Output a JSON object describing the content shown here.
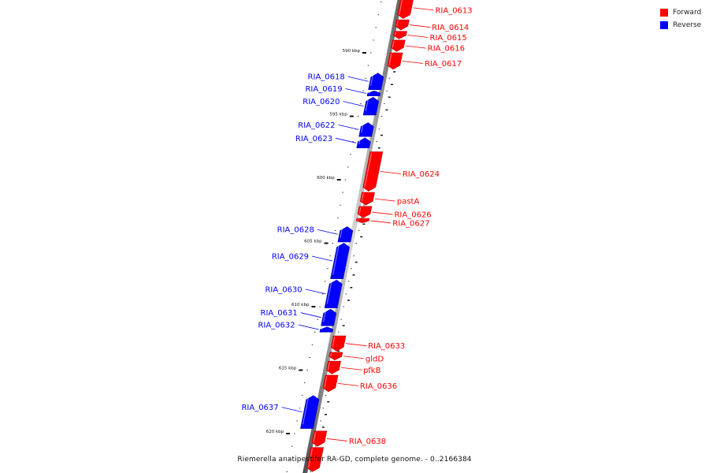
{
  "legend": {
    "forward_label": "Forward",
    "reverse_label": "Reverse",
    "forward_color": "#ff0000",
    "reverse_color": "#0000ff"
  },
  "footer": {
    "caption": "Riemerella anatipestifer RA-GD, complete genome. - 0..2166384"
  },
  "scale": {
    "ticks": [
      {
        "kbp": 590,
        "label": "590 kbp"
      },
      {
        "kbp": 595,
        "label": "595 kbp"
      },
      {
        "kbp": 600,
        "label": "600 kbp"
      },
      {
        "kbp": 605,
        "label": "605 kbp"
      },
      {
        "kbp": 610,
        "label": "610 kbp"
      },
      {
        "kbp": 615,
        "label": "615 kbp"
      },
      {
        "kbp": 620,
        "label": "620 kbp"
      }
    ]
  },
  "genes": [
    {
      "name": "RIA_0613",
      "strand": "forward",
      "start_kbp": 585.6,
      "end_kbp": 587.3
    },
    {
      "name": "RIA_0614",
      "strand": "forward",
      "start_kbp": 587.4,
      "end_kbp": 588.2
    },
    {
      "name": "RIA_0615",
      "strand": "forward",
      "start_kbp": 588.3,
      "end_kbp": 588.9
    },
    {
      "name": "RIA_0616",
      "strand": "forward",
      "start_kbp": 589.0,
      "end_kbp": 589.9
    },
    {
      "name": "RIA_0617",
      "strand": "forward",
      "start_kbp": 590.0,
      "end_kbp": 591.3
    },
    {
      "name": "RIA_0618",
      "strand": "reverse",
      "start_kbp": 591.6,
      "end_kbp": 592.9
    },
    {
      "name": "RIA_0619",
      "strand": "reverse",
      "start_kbp": 593.0,
      "end_kbp": 593.4
    },
    {
      "name": "RIA_0620",
      "strand": "reverse",
      "start_kbp": 593.5,
      "end_kbp": 594.9
    },
    {
      "name": "RIA_0622",
      "strand": "reverse",
      "start_kbp": 595.5,
      "end_kbp": 596.6
    },
    {
      "name": "RIA_0623",
      "strand": "reverse",
      "start_kbp": 596.7,
      "end_kbp": 597.5
    },
    {
      "name": "RIA_0624",
      "strand": "forward",
      "start_kbp": 597.8,
      "end_kbp": 600.9
    },
    {
      "name": "pastA",
      "strand": "forward",
      "start_kbp": 601.0,
      "end_kbp": 602.0
    },
    {
      "name": "RIA_0626",
      "strand": "forward",
      "start_kbp": 602.1,
      "end_kbp": 603.0
    },
    {
      "name": "RIA_0627",
      "strand": "forward",
      "start_kbp": 603.05,
      "end_kbp": 603.4
    },
    {
      "name": "RIA_0628",
      "strand": "reverse",
      "start_kbp": 603.7,
      "end_kbp": 604.9
    },
    {
      "name": "RIA_0629",
      "strand": "reverse",
      "start_kbp": 605.0,
      "end_kbp": 607.8
    },
    {
      "name": "RIA_0630",
      "strand": "reverse",
      "start_kbp": 607.9,
      "end_kbp": 610.1
    },
    {
      "name": "RIA_0631",
      "strand": "reverse",
      "start_kbp": 610.2,
      "end_kbp": 611.5
    },
    {
      "name": "RIA_0632",
      "strand": "reverse",
      "start_kbp": 611.6,
      "end_kbp": 612.0
    },
    {
      "name": "RIA_0633",
      "strand": "forward",
      "start_kbp": 612.3,
      "end_kbp": 613.5
    },
    {
      "name": "gldD",
      "strand": "forward",
      "start_kbp": 613.6,
      "end_kbp": 614.2
    },
    {
      "name": "pfkB",
      "strand": "forward",
      "start_kbp": 614.3,
      "end_kbp": 615.3
    },
    {
      "name": "RIA_0636",
      "strand": "forward",
      "start_kbp": 615.4,
      "end_kbp": 616.7
    },
    {
      "name": "RIA_0637",
      "strand": "reverse",
      "start_kbp": 617.0,
      "end_kbp": 619.6
    },
    {
      "name": "RIA_0638",
      "strand": "forward",
      "start_kbp": 619.8,
      "end_kbp": 621.0
    },
    {
      "name": "",
      "strand": "forward",
      "start_kbp": 621.1,
      "end_kbp": 623.0
    }
  ]
}
